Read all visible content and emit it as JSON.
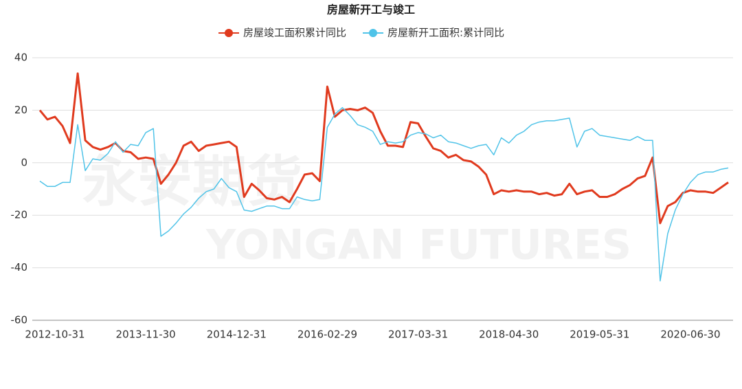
{
  "chart_data": {
    "type": "line",
    "title": "房屋新开工与竣工",
    "watermark": [
      "永安期货",
      "YONGAN FUTURES"
    ],
    "categories": [
      null,
      null,
      "2012-10-31",
      null,
      null,
      null,
      null,
      null,
      null,
      null,
      null,
      null,
      null,
      null,
      "2013-11-30",
      null,
      null,
      null,
      null,
      null,
      null,
      null,
      null,
      null,
      null,
      null,
      "2014-12-31",
      null,
      null,
      null,
      null,
      null,
      null,
      null,
      null,
      null,
      null,
      null,
      "2016-02-29",
      null,
      null,
      null,
      null,
      null,
      null,
      null,
      null,
      null,
      null,
      null,
      "2017-03-31",
      null,
      null,
      null,
      null,
      null,
      null,
      null,
      null,
      null,
      null,
      null,
      "2018-04-30",
      null,
      null,
      null,
      null,
      null,
      null,
      null,
      null,
      null,
      null,
      null,
      "2019-05-31",
      null,
      null,
      null,
      null,
      null,
      null,
      null,
      null,
      null,
      null,
      null,
      "2020-06-30",
      null,
      null,
      null,
      null,
      null
    ],
    "series": [
      {
        "name": "房屋竣工面积累计同比",
        "color": "#e03a1e",
        "values": [
          20,
          16.5,
          17.5,
          14,
          7.5,
          34,
          8.5,
          6,
          5,
          6,
          7.5,
          4.5,
          4,
          1.5,
          2,
          1.5,
          -8,
          -4.5,
          0,
          6.5,
          8,
          4.5,
          6.5,
          7,
          7.5,
          8,
          6,
          -13,
          -8,
          -10.5,
          -13.5,
          -14,
          -13,
          -15,
          -10,
          -4.5,
          -4,
          -7,
          29,
          17.5,
          20,
          20.5,
          20,
          21,
          19,
          12,
          6.5,
          6.5,
          6,
          15.5,
          15,
          10,
          5.5,
          4.5,
          2,
          3,
          1,
          0.5,
          -1.5,
          -4.5,
          -12,
          -10.5,
          -11,
          -10.5,
          -11,
          -11,
          -12,
          -11.5,
          -12.5,
          -12,
          -8,
          -12,
          -11,
          -10.5,
          -13,
          -13,
          -12,
          -10,
          -8.5,
          -6,
          -5,
          2,
          -23,
          -16.5,
          -15,
          -11.5,
          -10.5,
          -11,
          -11,
          -11.5,
          -9.5,
          -7.5
        ]
      },
      {
        "name": "房屋新开工面积:累计同比",
        "color": "#4fc3e8",
        "values": [
          -7,
          -9,
          -9,
          -7.5,
          -7.5,
          14.5,
          -3,
          1.5,
          1,
          3.5,
          8,
          4,
          7,
          6.5,
          11.5,
          13,
          -28,
          -26,
          -23,
          -19.5,
          -17,
          -13.5,
          -11,
          -10,
          -6,
          -9.5,
          -11,
          -18,
          -18.5,
          -17.5,
          -16.5,
          -16.5,
          -17.5,
          -17.5,
          -13,
          -14,
          -14.5,
          -14,
          13.5,
          18.5,
          21,
          18,
          14.5,
          13.5,
          12,
          7,
          8,
          7.5,
          8,
          10.5,
          11.5,
          11,
          9.5,
          10.5,
          8,
          7.5,
          6.5,
          5.5,
          6.5,
          7,
          3,
          9.5,
          7.5,
          10.5,
          12,
          14.5,
          15.5,
          16,
          16,
          16.5,
          17,
          6,
          12,
          13,
          10.5,
          10,
          9.5,
          9,
          8.5,
          10,
          8.5,
          8.5,
          -45,
          -27,
          -18,
          -12,
          -7.5,
          -4.5,
          -3.5,
          -3.5,
          -2.5,
          -2
        ]
      }
    ],
    "ylim": [
      -60,
      40
    ],
    "yticks": [
      -60,
      -40,
      -20,
      0,
      20,
      40
    ],
    "grid": true
  }
}
